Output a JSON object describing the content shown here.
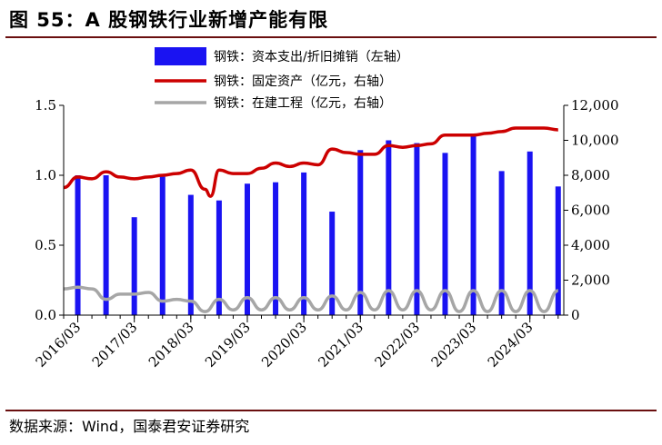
{
  "title": "图 55：A 股钢铁行业新增产能有限",
  "source": "数据来源：Wind，国泰君安证券研究",
  "colors": {
    "bars": "#1a13f2",
    "fixed_assets": "#cc0000",
    "construction": "#a6a6a6"
  },
  "chart_data": {
    "type": "bar",
    "legend_position": "top-center",
    "grid": false,
    "x_ticks": [
      "2016/03",
      "2017/03",
      "2018/03",
      "2019/03",
      "2020/03",
      "2021/03",
      "2022/03",
      "2023/03",
      "2024/03"
    ],
    "y_left": {
      "ticks": [
        "0.0",
        "0.5",
        "1.0",
        "1.5"
      ],
      "lim": [
        0,
        1.5
      ]
    },
    "y_right": {
      "ticks": [
        "0",
        "2,000",
        "4,000",
        "6,000",
        "8,000",
        "10,000",
        "12,000"
      ],
      "lim": [
        0,
        12000
      ]
    },
    "bar_series": {
      "name": "钢铁：资本支出/折旧摊销（左轴）",
      "axis": "left",
      "x": [
        2016.25,
        2016.75,
        2017.25,
        2017.75,
        2018.25,
        2018.75,
        2019.25,
        2019.75,
        2020.25,
        2020.75,
        2021.25,
        2021.75,
        2022.25,
        2022.75,
        2023.25,
        2023.75,
        2024.25,
        2024.75
      ],
      "values": [
        1.0,
        1.0,
        0.7,
        0.99,
        0.86,
        0.82,
        0.94,
        0.95,
        1.02,
        0.74,
        1.18,
        1.25,
        1.23,
        1.16,
        1.28,
        1.03,
        1.17,
        0.92
      ]
    },
    "line_series": [
      {
        "name": "钢铁：固定资产（亿元，右轴）",
        "axis": "right",
        "x": [
          2016.0,
          2016.25,
          2016.5,
          2016.75,
          2017.0,
          2017.25,
          2017.5,
          2017.75,
          2018.0,
          2018.25,
          2018.5,
          2018.6,
          2018.75,
          2019.0,
          2019.25,
          2019.5,
          2019.75,
          2020.0,
          2020.25,
          2020.5,
          2020.75,
          2021.0,
          2021.25,
          2021.5,
          2021.75,
          2022.0,
          2022.25,
          2022.5,
          2022.75,
          2023.0,
          2023.25,
          2023.5,
          2023.75,
          2024.0,
          2024.25,
          2024.5,
          2024.75
        ],
        "values": [
          7300,
          7900,
          7800,
          8200,
          7900,
          7800,
          7900,
          8000,
          8100,
          8300,
          7200,
          6800,
          8300,
          8100,
          8100,
          8400,
          8700,
          8500,
          8700,
          8600,
          9500,
          9300,
          9200,
          9200,
          9700,
          9600,
          9700,
          9800,
          10300,
          10300,
          10300,
          10400,
          10500,
          10700,
          10700,
          10700,
          10600
        ]
      },
      {
        "name": "钢铁：在建工程（亿元，右轴）",
        "axis": "right",
        "x": [
          2016.0,
          2016.25,
          2016.5,
          2016.75,
          2017.0,
          2017.25,
          2017.5,
          2017.75,
          2018.0,
          2018.25,
          2018.5,
          2018.75,
          2019.0,
          2019.25,
          2019.5,
          2019.75,
          2020.0,
          2020.25,
          2020.5,
          2020.75,
          2021.0,
          2021.25,
          2021.5,
          2021.75,
          2022.0,
          2022.25,
          2022.5,
          2022.75,
          2023.0,
          2023.25,
          2023.5,
          2023.75,
          2024.0,
          2024.25,
          2024.5,
          2024.75
        ],
        "values": [
          1500,
          1600,
          1500,
          900,
          1200,
          1200,
          1300,
          800,
          900,
          800,
          200,
          900,
          300,
          1000,
          300,
          1000,
          300,
          1000,
          300,
          1100,
          300,
          1300,
          300,
          1400,
          300,
          1400,
          300,
          1400,
          200,
          1400,
          200,
          1400,
          200,
          1400,
          200,
          1400
        ]
      }
    ]
  }
}
